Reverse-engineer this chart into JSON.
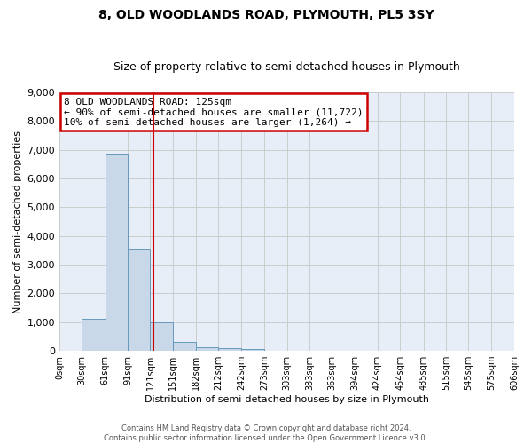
{
  "title": "8, OLD WOODLANDS ROAD, PLYMOUTH, PL5 3SY",
  "subtitle": "Size of property relative to semi-detached houses in Plymouth",
  "xlabel": "Distribution of semi-detached houses by size in Plymouth",
  "ylabel": "Number of semi-detached properties",
  "footer_line1": "Contains HM Land Registry data © Crown copyright and database right 2024.",
  "footer_line2": "Contains public sector information licensed under the Open Government Licence v3.0.",
  "annotation_title": "8 OLD WOODLANDS ROAD: 125sqm",
  "annotation_line1": "← 90% of semi-detached houses are smaller (11,722)",
  "annotation_line2": "10% of semi-detached houses are larger (1,264) →",
  "bar_edges": [
    0,
    30,
    61,
    91,
    121,
    151,
    182,
    212,
    242,
    273,
    303,
    333,
    363,
    394,
    424,
    454,
    485,
    515,
    545,
    575,
    606
  ],
  "bar_values": [
    0,
    1130,
    6880,
    3560,
    1000,
    320,
    140,
    100,
    70,
    0,
    0,
    0,
    0,
    0,
    0,
    0,
    0,
    0,
    0,
    0
  ],
  "bar_color": "#c8d8e8",
  "bar_edge_color": "#6699bb",
  "vline_color": "#cc0000",
  "vline_x": 125,
  "ylim": [
    0,
    9000
  ],
  "yticks": [
    0,
    1000,
    2000,
    3000,
    4000,
    5000,
    6000,
    7000,
    8000,
    9000
  ],
  "annotation_box_color": "#cc0000",
  "grid_color": "#cccccc",
  "bg_color": "#e8eef8",
  "title_fontsize": 10,
  "subtitle_fontsize": 9,
  "axis_label_fontsize": 8,
  "tick_label_fontsize": 7,
  "annotation_fontsize": 8,
  "footer_fontsize": 6
}
